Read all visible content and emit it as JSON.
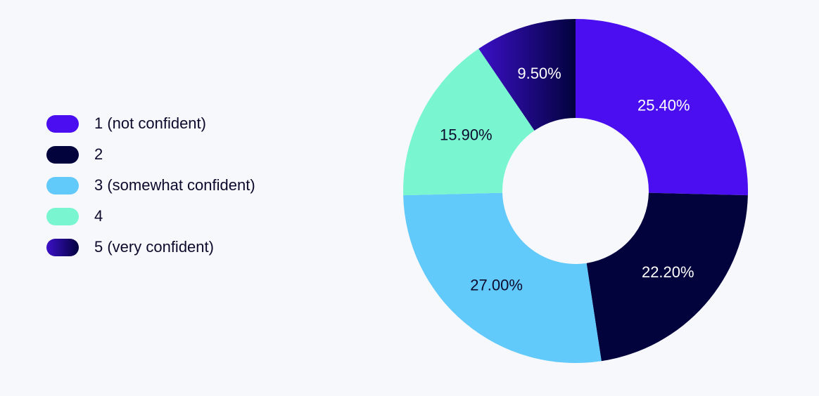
{
  "chart_data": {
    "type": "pie",
    "variant": "donut",
    "title": "",
    "categories": [
      "1 (not confident)",
      "2",
      "3 (somewhat confident)",
      "4",
      "5 (very confident)"
    ],
    "values": [
      25.4,
      22.2,
      27.0,
      15.9,
      9.5
    ],
    "value_labels": [
      "25.40%",
      "22.20%",
      "27.00%",
      "15.90%",
      "9.50%"
    ],
    "colors": [
      "#4a0ef0",
      "#02023d",
      "#62c9fb",
      "#79f6d0",
      "gradient:#3c10c9-#02023d"
    ],
    "label_colors": [
      "#ffffff",
      "#ffffff",
      "#0b0a2c",
      "#0b0a2c",
      "#ffffff"
    ],
    "legend_position": "left"
  }
}
